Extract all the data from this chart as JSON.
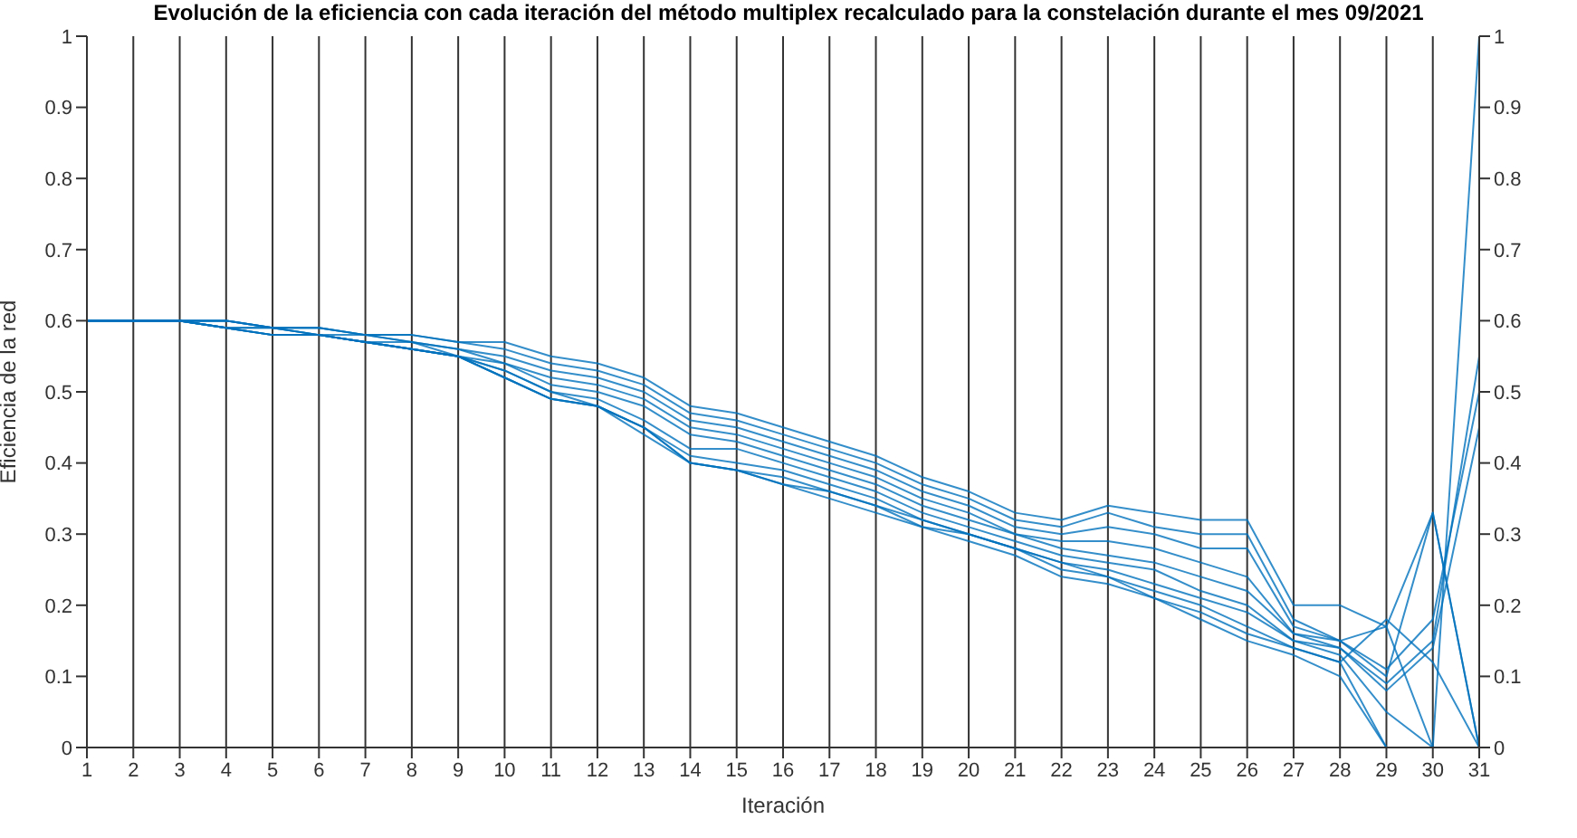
{
  "chart_data": {
    "type": "line",
    "title": "Evolución de la eficiencia con cada iteración del método multiplex recalculado para la constelación durante el mes 09/2021",
    "xlabel": "Iteración",
    "ylabel": "Eficiencia de la red",
    "x": [
      1,
      2,
      3,
      4,
      5,
      6,
      7,
      8,
      9,
      10,
      11,
      12,
      13,
      14,
      15,
      16,
      17,
      18,
      19,
      20,
      21,
      22,
      23,
      24,
      25,
      26,
      27,
      28,
      29,
      30,
      31
    ],
    "xlim": [
      1,
      31
    ],
    "xticks": [
      1,
      2,
      3,
      4,
      5,
      6,
      7,
      8,
      9,
      10,
      11,
      12,
      13,
      14,
      15,
      16,
      17,
      18,
      19,
      20,
      21,
      22,
      23,
      24,
      25,
      26,
      27,
      28,
      29,
      30,
      31
    ],
    "ylim": [
      0,
      1
    ],
    "yticks": [
      0,
      0.1,
      0.2,
      0.3,
      0.4,
      0.5,
      0.6,
      0.7,
      0.8,
      0.9,
      1
    ],
    "y2lim": [
      0,
      1
    ],
    "y2ticks": [
      0,
      0.1,
      0.2,
      0.3,
      0.4,
      0.5,
      0.6,
      0.7,
      0.8,
      0.9,
      1
    ],
    "grid": "x",
    "marker": "none",
    "line_style": "solid",
    "series": [
      {
        "color": "#0072bd",
        "values": [
          0.6,
          0.6,
          0.6,
          0.6,
          0.59,
          0.59,
          0.58,
          0.58,
          0.57,
          0.57,
          0.55,
          0.54,
          0.52,
          0.48,
          0.47,
          0.45,
          0.43,
          0.41,
          0.38,
          0.36,
          0.33,
          0.32,
          0.34,
          0.33,
          0.32,
          0.32,
          0.2,
          0.2,
          0.17,
          0.33,
          0
        ]
      },
      {
        "color": "#0072bd",
        "values": [
          0.6,
          0.6,
          0.6,
          0.6,
          0.59,
          0.59,
          0.58,
          0.58,
          0.57,
          0.56,
          0.54,
          0.53,
          0.51,
          0.47,
          0.46,
          0.44,
          0.42,
          0.4,
          0.37,
          0.35,
          0.32,
          0.31,
          0.33,
          0.31,
          0.3,
          0.3,
          0.18,
          0.15,
          0.17,
          0,
          1
        ]
      },
      {
        "color": "#0072bd",
        "values": [
          0.6,
          0.6,
          0.6,
          0.6,
          0.59,
          0.59,
          0.58,
          0.57,
          0.56,
          0.55,
          0.53,
          0.52,
          0.5,
          0.46,
          0.45,
          0.43,
          0.41,
          0.39,
          0.36,
          0.34,
          0.31,
          0.3,
          0.31,
          0.3,
          0.28,
          0.28,
          0.17,
          0.15,
          0.1,
          0.33,
          0
        ]
      },
      {
        "color": "#0072bd",
        "values": [
          0.6,
          0.6,
          0.6,
          0.6,
          0.59,
          0.58,
          0.58,
          0.57,
          0.56,
          0.54,
          0.52,
          0.51,
          0.49,
          0.45,
          0.44,
          0.42,
          0.4,
          0.38,
          0.35,
          0.33,
          0.3,
          0.29,
          0.29,
          0.28,
          0.26,
          0.24,
          0.16,
          0.14,
          0.09,
          0.15,
          0.55
        ]
      },
      {
        "color": "#0072bd",
        "values": [
          0.6,
          0.6,
          0.6,
          0.59,
          0.59,
          0.58,
          0.57,
          0.57,
          0.55,
          0.54,
          0.51,
          0.5,
          0.48,
          0.44,
          0.43,
          0.41,
          0.39,
          0.37,
          0.34,
          0.32,
          0.3,
          0.28,
          0.27,
          0.26,
          0.24,
          0.22,
          0.16,
          0.15,
          0.11,
          0.18,
          0.5
        ]
      },
      {
        "color": "#0072bd",
        "values": [
          0.6,
          0.6,
          0.6,
          0.59,
          0.59,
          0.58,
          0.57,
          0.56,
          0.55,
          0.53,
          0.5,
          0.49,
          0.46,
          0.42,
          0.42,
          0.4,
          0.38,
          0.36,
          0.33,
          0.31,
          0.29,
          0.27,
          0.26,
          0.25,
          0.22,
          0.2,
          0.15,
          0.14,
          0.08,
          0.14,
          0.45
        ]
      },
      {
        "color": "#0072bd",
        "values": [
          0.6,
          0.6,
          0.6,
          0.59,
          0.58,
          0.58,
          0.57,
          0.56,
          0.55,
          0.53,
          0.5,
          0.48,
          0.45,
          0.41,
          0.4,
          0.39,
          0.37,
          0.35,
          0.32,
          0.3,
          0.28,
          0.26,
          0.25,
          0.23,
          0.21,
          0.19,
          0.15,
          0.13,
          0.05,
          0,
          0
        ]
      },
      {
        "color": "#0072bd",
        "values": [
          0.6,
          0.6,
          0.6,
          0.59,
          0.58,
          0.58,
          0.57,
          0.56,
          0.55,
          0.52,
          0.49,
          0.48,
          0.45,
          0.4,
          0.39,
          0.38,
          0.36,
          0.34,
          0.32,
          0.3,
          0.28,
          0.25,
          0.24,
          0.22,
          0.2,
          0.17,
          0.14,
          0.12,
          0,
          0,
          0
        ]
      },
      {
        "color": "#0072bd",
        "values": [
          0.6,
          0.6,
          0.6,
          0.59,
          0.58,
          0.58,
          0.57,
          0.56,
          0.55,
          0.52,
          0.49,
          0.48,
          0.44,
          0.4,
          0.39,
          0.37,
          0.36,
          0.34,
          0.31,
          0.29,
          0.27,
          0.24,
          0.23,
          0.21,
          0.18,
          0.15,
          0.13,
          0.1,
          0,
          0,
          0
        ]
      },
      {
        "color": "#0072bd",
        "values": [
          0.6,
          0.6,
          0.6,
          0.59,
          0.58,
          0.58,
          0.57,
          0.56,
          0.55,
          0.52,
          0.49,
          0.48,
          0.45,
          0.4,
          0.39,
          0.37,
          0.35,
          0.33,
          0.31,
          0.3,
          0.28,
          0.26,
          0.24,
          0.21,
          0.19,
          0.16,
          0.14,
          0.12,
          0.18,
          0.12,
          0
        ]
      }
    ]
  }
}
